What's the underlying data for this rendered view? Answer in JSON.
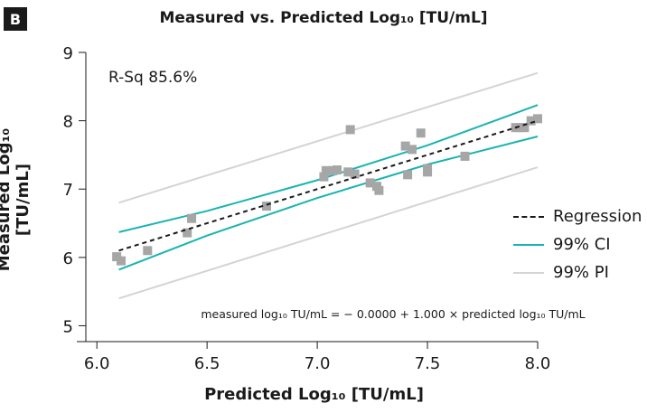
{
  "panel_label": "B",
  "chart_data": {
    "type": "scatter",
    "title": "Measured vs. Predicted Log₁₀ [TU/mL]",
    "xlabel": "Predicted Log₁₀ [TU/mL]",
    "ylabel": "Measured Log₁₀ [TU/mL]",
    "xlim": [
      5.95,
      8.0
    ],
    "ylim": [
      4.9,
      9.0
    ],
    "x_ticks": [
      "6.0",
      "6.5",
      "7.0",
      "7.5",
      "8.0"
    ],
    "x_tick_values": [
      6.0,
      6.5,
      7.0,
      7.5,
      8.0
    ],
    "y_ticks": [
      "5",
      "6",
      "7",
      "8",
      "9"
    ],
    "y_tick_values": [
      5,
      6,
      7,
      8,
      9
    ],
    "grid": false,
    "legend_position": "right",
    "annotation_rsq": "R-Sq 85.6%",
    "equation": "measured log₁₀ TU/mL = − 0.0000 + 1.000 × predicted log₁₀ TU/mL",
    "points": [
      [
        6.09,
        6.01
      ],
      [
        6.11,
        5.95
      ],
      [
        6.23,
        6.1
      ],
      [
        6.41,
        6.36
      ],
      [
        6.43,
        6.57
      ],
      [
        6.77,
        6.75
      ],
      [
        7.03,
        7.18
      ],
      [
        7.04,
        7.27
      ],
      [
        7.07,
        7.27
      ],
      [
        7.09,
        7.28
      ],
      [
        7.14,
        7.25
      ],
      [
        7.15,
        7.87
      ],
      [
        7.17,
        7.22
      ],
      [
        7.24,
        7.09
      ],
      [
        7.27,
        7.04
      ],
      [
        7.28,
        6.98
      ],
      [
        7.4,
        7.63
      ],
      [
        7.41,
        7.21
      ],
      [
        7.43,
        7.58
      ],
      [
        7.47,
        7.82
      ],
      [
        7.5,
        7.25
      ],
      [
        7.5,
        7.3
      ],
      [
        7.67,
        7.48
      ],
      [
        7.9,
        7.9
      ],
      [
        7.92,
        7.9
      ],
      [
        7.94,
        7.9
      ],
      [
        7.97,
        8.0
      ],
      [
        8.0,
        8.03
      ]
    ],
    "series": [
      {
        "name": "Regression",
        "color": "#1a1a1a",
        "dash": true,
        "x": [
          6.1,
          8.0
        ],
        "y": [
          6.1,
          8.0
        ]
      },
      {
        "name": "99% CI",
        "color": "#1ab3b3",
        "dash": false,
        "upper": {
          "x": [
            6.1,
            6.5,
            7.0,
            7.5,
            8.0
          ],
          "y": [
            6.37,
            6.68,
            7.13,
            7.64,
            8.23
          ]
        },
        "lower": {
          "x": [
            6.1,
            6.5,
            7.0,
            7.5,
            8.0
          ],
          "y": [
            5.82,
            6.32,
            6.87,
            7.36,
            7.77
          ]
        }
      },
      {
        "name": "99% PI",
        "color": "#d4d4d4",
        "dash": false,
        "upper": {
          "x": [
            6.1,
            8.0
          ],
          "y": [
            6.8,
            8.7
          ]
        },
        "lower": {
          "x": [
            6.1,
            8.0
          ],
          "y": [
            5.4,
            7.32
          ]
        }
      }
    ],
    "point_color": "#a6a6a6"
  }
}
